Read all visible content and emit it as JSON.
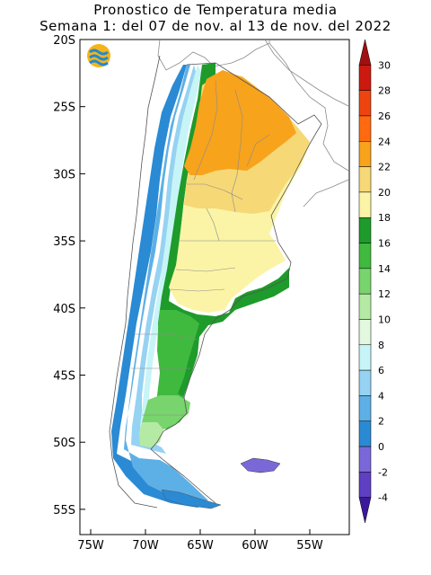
{
  "map": {
    "title": "Pronostico de Temperatura media",
    "subtitle": "Semana 1: del 07 de nov. al 13 de nov. del 2022",
    "latitude_labels": [
      "20S",
      "25S",
      "30S",
      "35S",
      "40S",
      "45S",
      "50S",
      "55S"
    ],
    "longitude_labels": [
      "75W",
      "70W",
      "65W",
      "60W",
      "55W"
    ],
    "colorbar": {
      "tick_labels": [
        "30",
        "28",
        "26",
        "24",
        "22",
        "20",
        "18",
        "16",
        "14",
        "12",
        "10",
        "8",
        "6",
        "4",
        "2",
        "0",
        "-2",
        "-4"
      ],
      "levels_top_to_bottom": [
        {
          "range": ">30",
          "color": "#a01010"
        },
        {
          "range": "28-30",
          "color": "#cc1a10"
        },
        {
          "range": "26-28",
          "color": "#ee4410"
        },
        {
          "range": "24-26",
          "color": "#ff6a10"
        },
        {
          "range": "22-24",
          "color": "#f7a31c"
        },
        {
          "range": "20-22",
          "color": "#f6d876"
        },
        {
          "range": "18-20",
          "color": "#fbf4a6"
        },
        {
          "range": "16-18",
          "color": "#1e9b2a"
        },
        {
          "range": "14-16",
          "color": "#3fba3f"
        },
        {
          "range": "12-14",
          "color": "#78d46c"
        },
        {
          "range": "10-12",
          "color": "#b5eaa5"
        },
        {
          "range": "8-10",
          "color": "#e2f9e0"
        },
        {
          "range": "6-8",
          "color": "#c7f5f7"
        },
        {
          "range": "4-6",
          "color": "#96d2f2"
        },
        {
          "range": "2-4",
          "color": "#5db0e6"
        },
        {
          "range": "0-2",
          "color": "#2a8ad4"
        },
        {
          "range": "-2-0",
          "color": "#7b68d8"
        },
        {
          "range": "-4--2",
          "color": "#5f3fc2"
        },
        {
          "range": "<-4",
          "color": "#3a1a9a"
        }
      ]
    },
    "colors": {
      "ocean_coast_line": "#555555",
      "border_line": "#8c8c8c"
    },
    "logo_icon": "waves-logo-icon"
  }
}
